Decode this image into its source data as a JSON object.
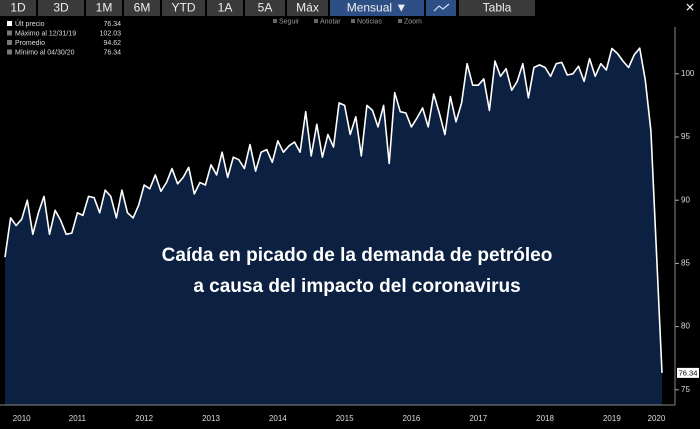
{
  "ui": {
    "toolbar": [
      "1D",
      "3D",
      "1M",
      "6M",
      "YTD",
      "1A",
      "5A",
      "Máx",
      "Mensual ▼",
      "Tabla"
    ],
    "selected": "Mensual ▼",
    "close": "✕",
    "actions": [
      "Seguir",
      "Anotar",
      "Noticias",
      "Zoom"
    ]
  },
  "chart_data": {
    "type": "area",
    "color": "#ffffff",
    "fill": "#0c2142",
    "annotation": [
      "Caída en picado de la demanda de petróleo",
      "a causa del impacto del coronavirus"
    ],
    "legend_stats": [
      {
        "label": "Últ precio",
        "value": 76.34
      },
      {
        "label": "Máximo al 12/31/19",
        "value": 102.03
      },
      {
        "label": "Promedio",
        "value": 94.62
      },
      {
        "label": "Mínimo al 04/30/20",
        "value": 76.34
      }
    ],
    "ylim": [
      73.8,
      103.7
    ],
    "yticks": [
      75,
      80,
      85,
      90,
      95,
      100
    ],
    "grid": false,
    "categories": [
      null,
      null,
      null,
      "2010",
      null,
      null,
      null,
      null,
      null,
      null,
      null,
      null,
      null,
      "2011",
      null,
      null,
      null,
      null,
      null,
      null,
      null,
      null,
      null,
      null,
      null,
      "2012",
      null,
      null,
      null,
      null,
      null,
      null,
      null,
      null,
      null,
      null,
      null,
      "2013",
      null,
      null,
      null,
      null,
      null,
      null,
      null,
      null,
      null,
      null,
      null,
      "2014",
      null,
      null,
      null,
      null,
      null,
      null,
      null,
      null,
      null,
      null,
      null,
      "2015",
      null,
      null,
      null,
      null,
      null,
      null,
      null,
      null,
      null,
      null,
      null,
      "2016",
      null,
      null,
      null,
      null,
      null,
      null,
      null,
      null,
      null,
      null,
      null,
      "2017",
      null,
      null,
      null,
      null,
      null,
      null,
      null,
      null,
      null,
      null,
      null,
      "2018",
      null,
      null,
      null,
      null,
      null,
      null,
      null,
      null,
      null,
      null,
      null,
      "2019",
      null,
      null,
      null,
      null,
      null,
      null,
      null,
      "2020",
      null
    ],
    "values": [
      85.5,
      88.6,
      88.0,
      88.5,
      90.0,
      87.3,
      89.0,
      90.3,
      87.3,
      89.2,
      88.4,
      87.3,
      87.4,
      89.0,
      88.8,
      90.3,
      90.2,
      89.0,
      90.8,
      90.3,
      88.6,
      90.8,
      89.0,
      88.6,
      89.6,
      91.2,
      90.9,
      92.0,
      90.7,
      91.4,
      92.5,
      91.3,
      91.8,
      92.6,
      90.5,
      91.4,
      91.2,
      92.8,
      92.0,
      93.8,
      91.8,
      93.4,
      93.2,
      92.5,
      94.4,
      92.3,
      93.8,
      94.0,
      93.0,
      94.7,
      93.8,
      94.3,
      94.6,
      93.8,
      97.0,
      93.5,
      96.0,
      93.4,
      95.2,
      94.2,
      97.7,
      97.5,
      95.2,
      96.6,
      93.5,
      97.5,
      97.1,
      95.8,
      97.5,
      92.9,
      98.5,
      97.0,
      96.9,
      95.8,
      96.5,
      97.3,
      95.8,
      98.4,
      96.9,
      95.2,
      98.2,
      96.2,
      97.7,
      100.8,
      99.1,
      99.1,
      99.6,
      97.1,
      101.0,
      99.8,
      100.4,
      98.7,
      99.4,
      100.8,
      98.1,
      100.5,
      100.7,
      100.5,
      99.8,
      100.8,
      100.9,
      99.9,
      100.0,
      100.6,
      99.4,
      101.2,
      99.8,
      100.8,
      100.3,
      102.0,
      101.6,
      101.0,
      100.5,
      101.5,
      102.03,
      99.5,
      95.5,
      86.0,
      76.34
    ]
  }
}
